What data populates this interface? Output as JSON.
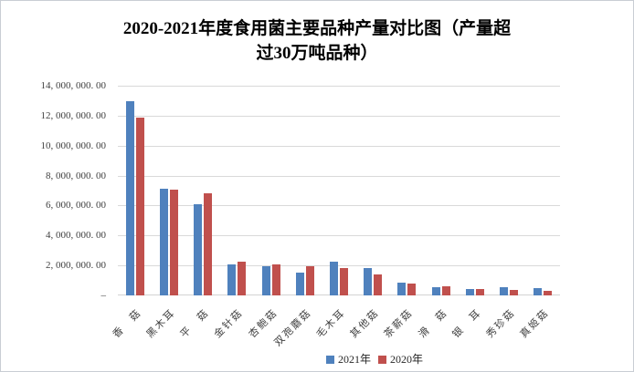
{
  "title": {
    "full": "2020-2021年度食用菌主要品种产量对比图（产量超过30万吨品种）",
    "lines": [
      "2020-2021年度食用菌主要品种产量对比图（产量超",
      "过30万吨品种）"
    ]
  },
  "y_axis": {
    "tick_labels": [
      "14, 000, 000. 00",
      "12, 000, 000. 00",
      "10, 000, 000. 00",
      "8, 000, 000. 00",
      "6, 000, 000. 00",
      "4, 000, 000. 00",
      "2, 000, 000. 00",
      "–"
    ],
    "max": 14000000,
    "min": 0,
    "step": 2000000
  },
  "colors": {
    "series_2021": "#4F81BD",
    "series_2020": "#C0504D",
    "gridline": "#d9d9d9"
  },
  "chart_data": {
    "type": "bar",
    "title": "2020-2021年度食用菌主要品种产量对比图（产量超过30万吨品种）",
    "xlabel": "",
    "ylabel": "",
    "ylim": [
      0,
      14000000
    ],
    "grid": true,
    "legend_position": "bottom",
    "categories": [
      "香　菇",
      "黑木耳",
      "平　菇",
      "金针菇",
      "杏鲍菇",
      "双孢蘑菇",
      "毛木耳",
      "其他菇",
      "茶薪菇",
      "滑　菇",
      "银　耳",
      "秀珍菇",
      "真姬菇"
    ],
    "series": [
      {
        "name": "2021年",
        "color": "#4F81BD",
        "values": [
          12950000,
          7100000,
          6080000,
          2070000,
          1970000,
          1550000,
          2240000,
          1810000,
          850000,
          550000,
          430000,
          550000,
          470000
        ]
      },
      {
        "name": "2020年",
        "color": "#C0504D",
        "values": [
          11890000,
          7060000,
          6800000,
          2250000,
          2050000,
          1960000,
          1830000,
          1400000,
          800000,
          600000,
          430000,
          380000,
          320000
        ]
      }
    ]
  }
}
